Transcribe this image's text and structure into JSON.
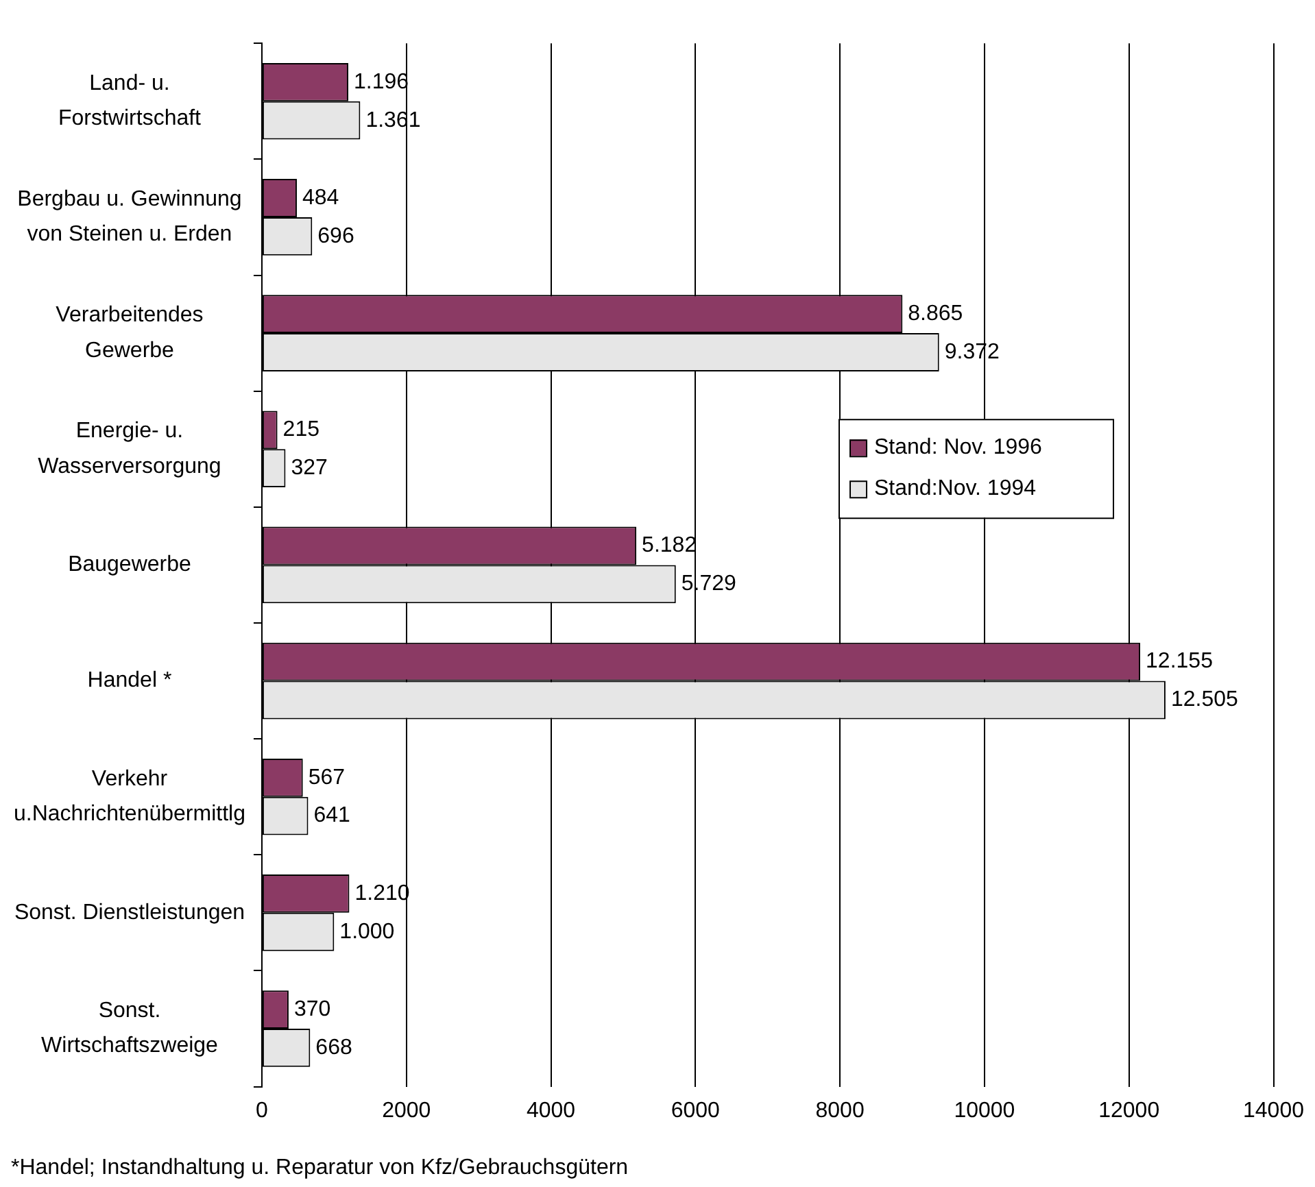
{
  "chart_data": {
    "type": "bar",
    "orientation": "horizontal",
    "categories": [
      "Land- u.\nForstwirtschaft",
      "Bergbau u. Gewinnung\nvon Steinen u. Erden",
      "Verarbeitendes\nGewerbe",
      "Energie- u.\nWasserversorgung",
      "Baugewerbe",
      "Handel *",
      "Verkehr\nu.Nachrichtenübermittlg",
      "Sonst. Dienstleistungen",
      "Sonst.\nWirtschaftszweige"
    ],
    "series": [
      {
        "name": "Stand: Nov. 1996",
        "color": "#8b3a64",
        "values": [
          1196,
          484,
          8865,
          215,
          5182,
          12155,
          567,
          1210,
          370
        ],
        "value_labels": [
          "1.196",
          "484",
          "8.865",
          "215",
          "5.182",
          "12.155",
          "567",
          "1.210",
          "370"
        ]
      },
      {
        "name": "Stand:Nov. 1994",
        "color": "#e6e6e6",
        "values": [
          1361,
          696,
          9372,
          327,
          5729,
          12505,
          641,
          1000,
          668
        ],
        "value_labels": [
          "1.361",
          "696",
          "9.372",
          "327",
          "5.729",
          "12.505",
          "641",
          "1.000",
          "668"
        ]
      }
    ],
    "xlim": [
      0,
      14000
    ],
    "xticks": [
      0,
      2000,
      4000,
      6000,
      8000,
      10000,
      12000,
      14000
    ],
    "grid": "x",
    "legend": "right",
    "annotations": [
      "*Handel; Instandhaltung u. Reparatur von Kfz/Gebrauchsgütern"
    ]
  }
}
